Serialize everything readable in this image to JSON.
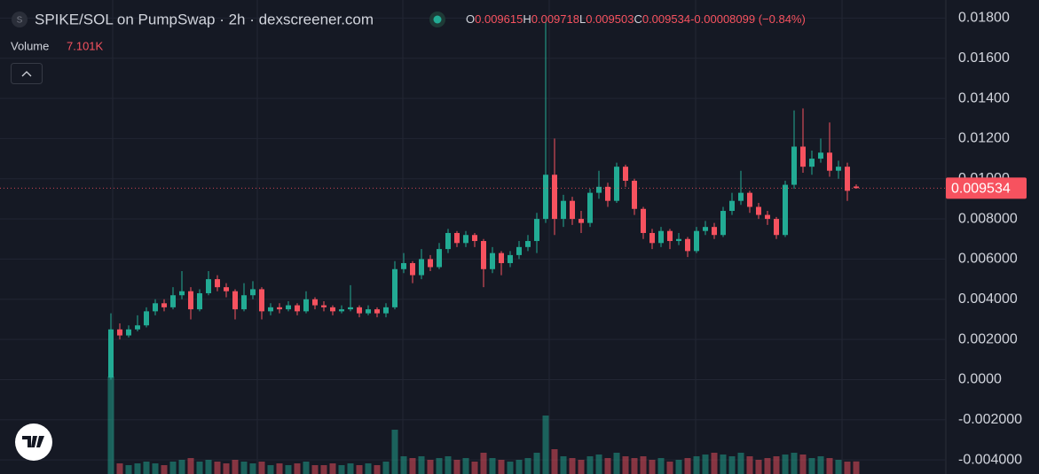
{
  "chart_data": {
    "type": "candlestick",
    "title": "SPIKE/SOL on PumpSwap · 2h · dexscreener.com",
    "symbol_icon": "S",
    "ohlc_labels": [
      "O",
      "H",
      "L",
      "C"
    ],
    "change_text": "-0.00008099 (−0.84%)",
    "volume_title": "Volume",
    "last_volume_label": "7.101K",
    "up_color": "#22ab94",
    "down_color": "#f7525f",
    "grid": true,
    "ylim": [
      -0.0047,
      0.0189
    ],
    "yticks": [
      {
        "value": 0.018,
        "label": "0.01800"
      },
      {
        "value": 0.016,
        "label": "0.01600"
      },
      {
        "value": 0.014,
        "label": "0.01400"
      },
      {
        "value": 0.012,
        "label": "0.01200"
      },
      {
        "value": 0.01,
        "label": "0.01000"
      },
      {
        "value": 0.008,
        "label": "0.008000"
      },
      {
        "value": 0.006,
        "label": "0.006000"
      },
      {
        "value": 0.004,
        "label": "0.004000"
      },
      {
        "value": 0.002,
        "label": "0.002000"
      },
      {
        "value": 0,
        "label": "0.0000"
      },
      {
        "value": -0.002,
        "label": "-0.002000"
      },
      {
        "value": -0.004,
        "label": "-0.004000"
      }
    ],
    "open": [
      0.0001,
      0.0025,
      0.0022,
      0.0025,
      0.0027,
      0.0034,
      0.0038,
      0.0036,
      0.0042,
      0.0044,
      0.0035,
      0.0043,
      0.005,
      0.0046,
      0.0044,
      0.0035,
      0.0042,
      0.0045,
      0.0034,
      0.0036,
      0.0035,
      0.0037,
      0.0034,
      0.004,
      0.0037,
      0.0036,
      0.0034,
      0.0035,
      0.0036,
      0.0033,
      0.0035,
      0.0033,
      0.0036,
      0.0055,
      0.0058,
      0.0052,
      0.006,
      0.0056,
      0.0065,
      0.0073,
      0.0068,
      0.0072,
      0.0069,
      0.0055,
      0.0063,
      0.0058,
      0.0062,
      0.0066,
      0.0069,
      0.008,
      0.0102,
      0.008,
      0.0089,
      0.008,
      0.0078,
      0.0093,
      0.0096,
      0.0089,
      0.0106,
      0.0099,
      0.0085,
      0.0073,
      0.0068,
      0.0074,
      0.0069,
      0.007,
      0.0064,
      0.0074,
      0.0076,
      0.0072,
      0.0084,
      0.0089,
      0.0093,
      0.0086,
      0.0082,
      0.008,
      0.0072,
      0.0097,
      0.0116,
      0.0106,
      0.011,
      0.0113,
      0.0104,
      0.0106,
      0.009615
    ],
    "close": [
      0.0025,
      0.0022,
      0.0025,
      0.0027,
      0.0034,
      0.0038,
      0.0036,
      0.0042,
      0.0044,
      0.0035,
      0.0043,
      0.005,
      0.0046,
      0.0044,
      0.0035,
      0.0042,
      0.0045,
      0.0034,
      0.0036,
      0.0035,
      0.0037,
      0.0034,
      0.004,
      0.0037,
      0.0036,
      0.0034,
      0.0035,
      0.0036,
      0.0033,
      0.0035,
      0.0033,
      0.0036,
      0.0055,
      0.0058,
      0.0052,
      0.006,
      0.0056,
      0.0065,
      0.0073,
      0.0068,
      0.0072,
      0.0069,
      0.0055,
      0.0063,
      0.0058,
      0.0062,
      0.0066,
      0.0069,
      0.008,
      0.0102,
      0.008,
      0.0089,
      0.008,
      0.0078,
      0.0093,
      0.0096,
      0.0089,
      0.0106,
      0.0099,
      0.0085,
      0.0073,
      0.0068,
      0.0074,
      0.0069,
      0.007,
      0.0064,
      0.0074,
      0.0076,
      0.0072,
      0.0084,
      0.0089,
      0.0093,
      0.0086,
      0.0082,
      0.008,
      0.0072,
      0.0097,
      0.0116,
      0.0106,
      0.011,
      0.0113,
      0.0104,
      0.0106,
      0.0094,
      0.009534
    ],
    "high": [
      0.0033,
      0.0028,
      0.0027,
      0.0032,
      0.0036,
      0.004,
      0.004,
      0.0046,
      0.0054,
      0.0046,
      0.0045,
      0.0054,
      0.0052,
      0.0048,
      0.0045,
      0.0048,
      0.0049,
      0.0046,
      0.0038,
      0.0038,
      0.0039,
      0.0038,
      0.0044,
      0.0041,
      0.0039,
      0.0037,
      0.0037,
      0.0047,
      0.0037,
      0.0037,
      0.0036,
      0.0038,
      0.0059,
      0.0063,
      0.0059,
      0.0065,
      0.0062,
      0.0068,
      0.0075,
      0.0074,
      0.0074,
      0.0073,
      0.007,
      0.0066,
      0.0064,
      0.0064,
      0.0069,
      0.0072,
      0.0083,
      0.0178,
      0.012,
      0.0092,
      0.0091,
      0.0084,
      0.0095,
      0.0104,
      0.0098,
      0.0108,
      0.0107,
      0.01,
      0.0086,
      0.0075,
      0.0076,
      0.0075,
      0.0073,
      0.0071,
      0.0076,
      0.0079,
      0.0078,
      0.0086,
      0.0093,
      0.0104,
      0.0094,
      0.0088,
      0.0084,
      0.0081,
      0.0099,
      0.0134,
      0.0135,
      0.0114,
      0.012,
      0.0128,
      0.0109,
      0.0108,
      0.009718
    ],
    "low": [
      0,
      0.002,
      0.0021,
      0.0024,
      0.0026,
      0.0032,
      0.0034,
      0.0035,
      0.004,
      0.003,
      0.0034,
      0.0042,
      0.0044,
      0.0041,
      0.003,
      0.0034,
      0.004,
      0.003,
      0.0032,
      0.0033,
      0.0034,
      0.0032,
      0.0033,
      0.0035,
      0.0034,
      0.0032,
      0.0033,
      0.0034,
      0.0031,
      0.0032,
      0.0031,
      0.0031,
      0.0035,
      0.0053,
      0.0048,
      0.005,
      0.0054,
      0.0055,
      0.0063,
      0.0066,
      0.0066,
      0.0066,
      0.0046,
      0.0053,
      0.0052,
      0.0056,
      0.006,
      0.0064,
      0.0063,
      0.0078,
      0.0072,
      0.0076,
      0.0077,
      0.0073,
      0.0076,
      0.009,
      0.0086,
      0.0088,
      0.0096,
      0.0082,
      0.007,
      0.0065,
      0.0066,
      0.0065,
      0.0067,
      0.0061,
      0.0063,
      0.0072,
      0.007,
      0.0071,
      0.0082,
      0.0087,
      0.0083,
      0.008,
      0.0077,
      0.007,
      0.0071,
      0.0095,
      0.0103,
      0.0102,
      0.0108,
      0.0101,
      0.01,
      0.0089,
      0.009503
    ],
    "volume": [
      55,
      6,
      5,
      6,
      7,
      6,
      5,
      7,
      8,
      9,
      7,
      8,
      7,
      6,
      8,
      7,
      6,
      7,
      5,
      6,
      5,
      6,
      7,
      5,
      5,
      6,
      5,
      6,
      5,
      6,
      5,
      7,
      25,
      10,
      9,
      10,
      8,
      9,
      10,
      8,
      9,
      7,
      12,
      9,
      8,
      7,
      8,
      9,
      12,
      33,
      14,
      10,
      9,
      8,
      10,
      11,
      9,
      12,
      10,
      9,
      10,
      8,
      9,
      7,
      8,
      9,
      10,
      11,
      12,
      11,
      10,
      12,
      10,
      8,
      9,
      10,
      11,
      12,
      11,
      9,
      10,
      9,
      8,
      7,
      7.101
    ]
  }
}
